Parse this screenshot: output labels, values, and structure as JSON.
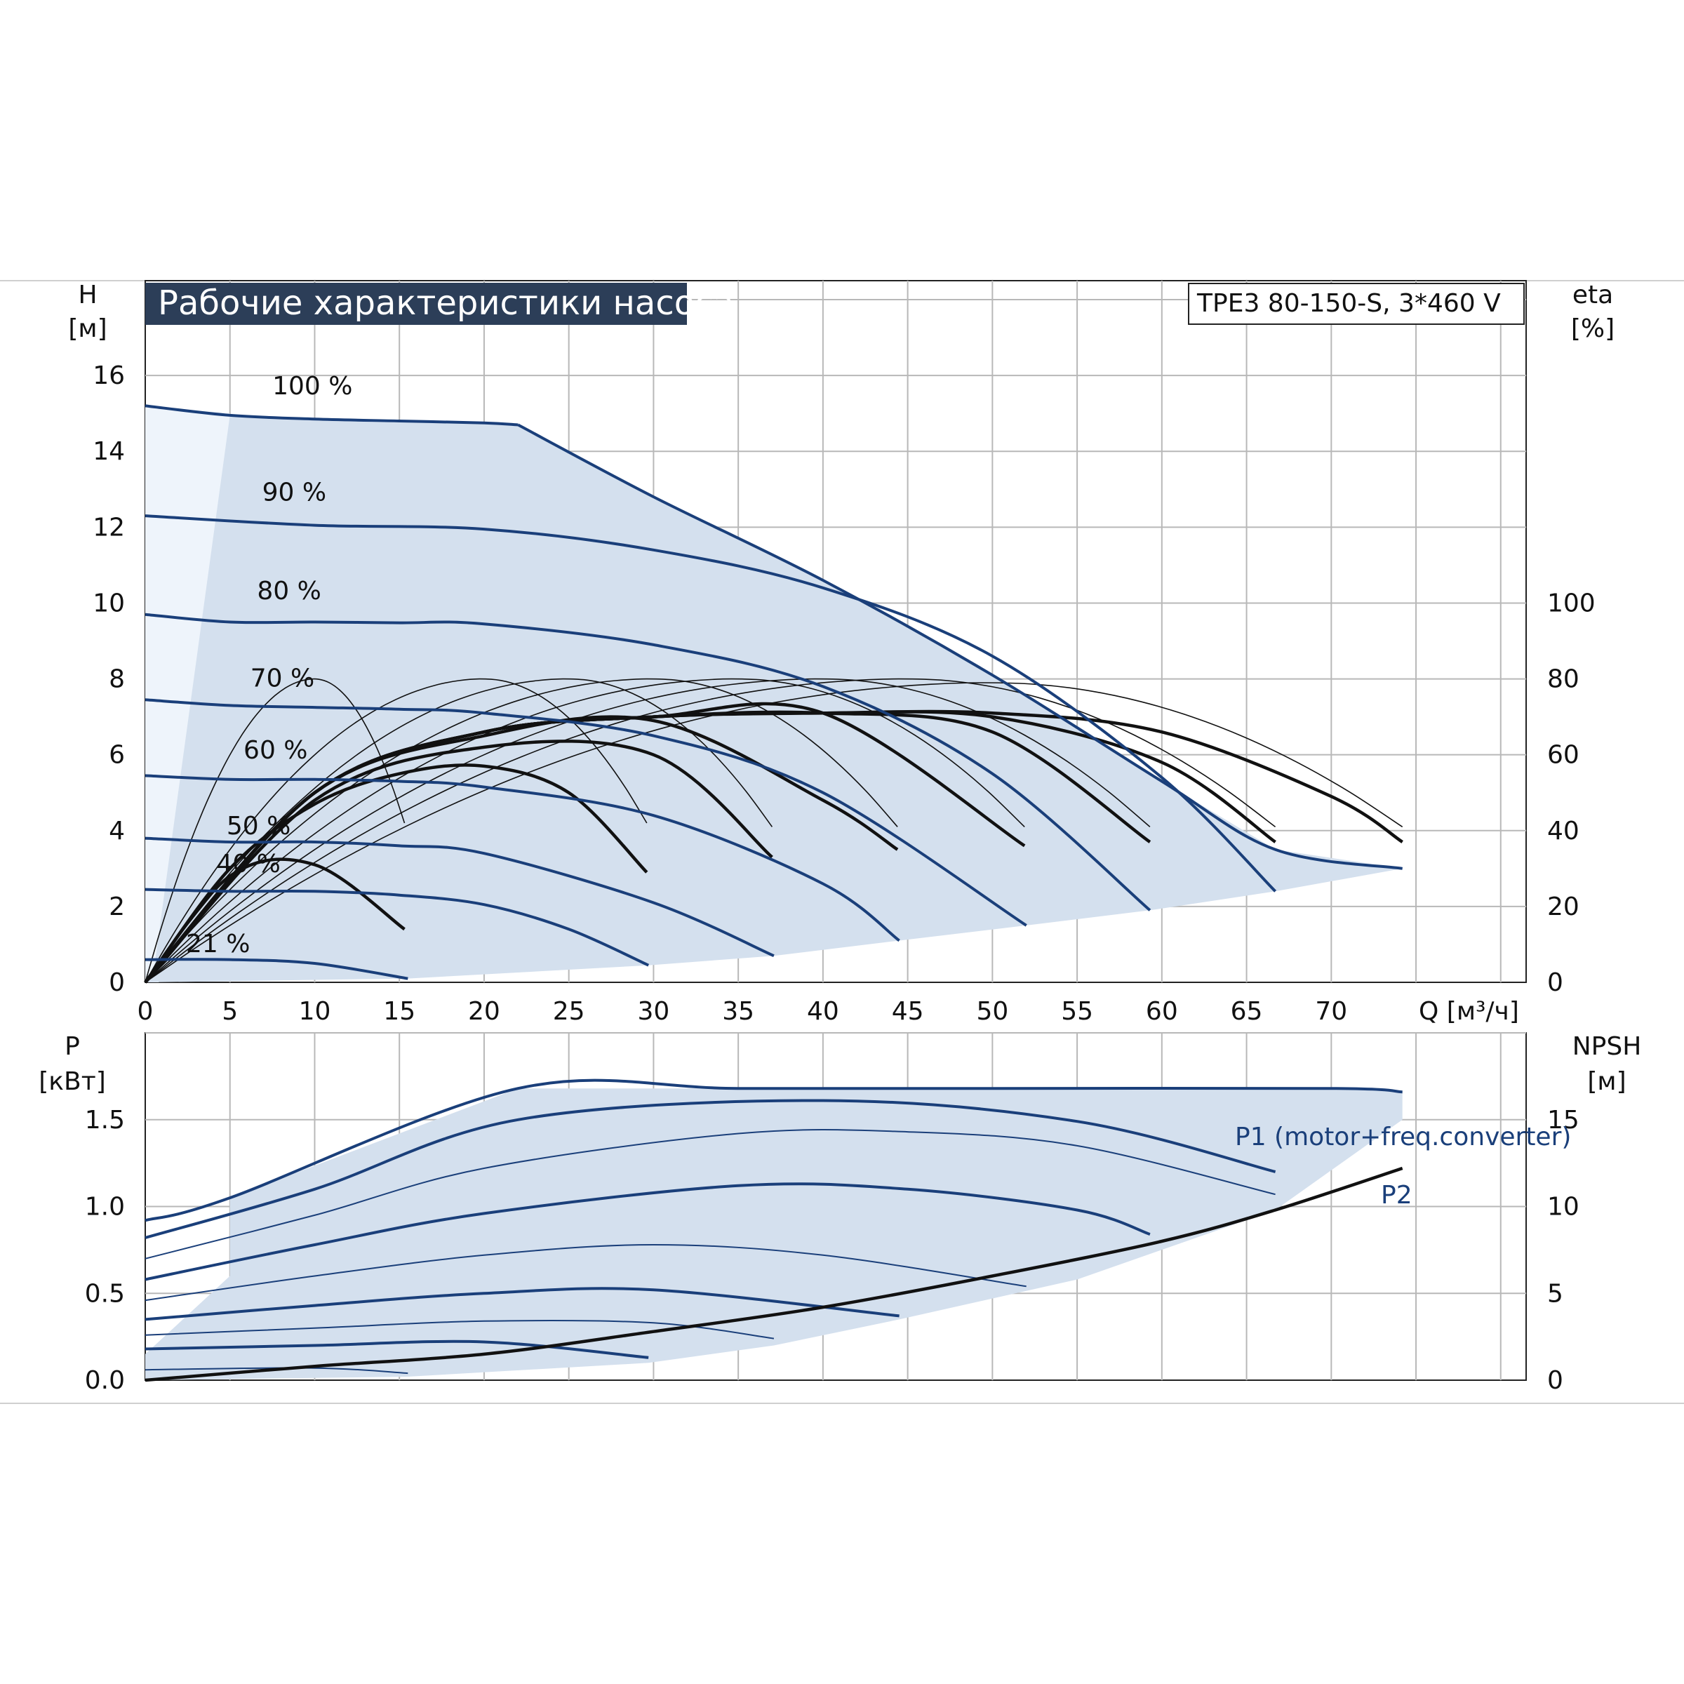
{
  "title": "Рабочие характеристики насоса",
  "model": "TPE3 80-150-S, 3*460 V",
  "colors": {
    "curve": "#1a3f7a",
    "envelope_fill": "#d4e0ee",
    "light_fill": "#eef4fb",
    "grid": "#b8b8b8",
    "title_bg": "#2c3e58",
    "efficiency": "#111111"
  },
  "chart_data": [
    {
      "type": "line",
      "panel": "head",
      "y_axis_label": "H",
      "y_axis_unit": "[м]",
      "y2_axis_label": "eta",
      "y2_axis_unit": "[%]",
      "x_axis_label": "Q [м³/ч]",
      "xlim": [
        0,
        81.5
      ],
      "ylim": [
        0,
        18.5
      ],
      "y2lim": [
        0,
        185
      ],
      "x_ticks": [
        0,
        5,
        10,
        15,
        20,
        25,
        30,
        35,
        40,
        45,
        50,
        55,
        60,
        65,
        70
      ],
      "y_ticks": [
        0,
        2,
        4,
        6,
        8,
        10,
        12,
        14,
        16
      ],
      "y2_ticks": [
        0,
        20,
        40,
        60,
        80,
        100
      ],
      "grid": true,
      "speed_labels": [
        "100 %",
        "90 %",
        "80 %",
        "70 %",
        "60 %",
        "50 %",
        "40 %",
        "21 %"
      ],
      "head_series": [
        {
          "name": "100 %",
          "x": [
            0,
            5,
            10,
            15,
            20,
            22
          ],
          "y": [
            15.2,
            14.95,
            14.85,
            14.8,
            14.75,
            14.7
          ]
        },
        {
          "name": "100 % max",
          "x": [
            22,
            30,
            40,
            50,
            60,
            66.7,
            74.2
          ],
          "y": [
            14.7,
            12.8,
            10.6,
            8.1,
            5.3,
            3.5,
            3.0
          ]
        },
        {
          "name": "90 %",
          "x": [
            0,
            10,
            20,
            30,
            40,
            50,
            60,
            66.7
          ],
          "y": [
            12.3,
            12.05,
            11.95,
            11.4,
            10.4,
            8.6,
            5.4,
            2.4
          ]
        },
        {
          "name": "80 %",
          "x": [
            0,
            5,
            10,
            15,
            20,
            30,
            40,
            50,
            59.3
          ],
          "y": [
            9.7,
            9.5,
            9.5,
            9.48,
            9.45,
            8.9,
            7.8,
            5.5,
            1.9
          ]
        },
        {
          "name": "70 %",
          "x": [
            0,
            5,
            10,
            15,
            20,
            30,
            40,
            52
          ],
          "y": [
            7.45,
            7.3,
            7.25,
            7.2,
            7.1,
            6.5,
            5.0,
            1.5
          ]
        },
        {
          "name": "60 %",
          "x": [
            0,
            5,
            10,
            15,
            20,
            30,
            40,
            44.5
          ],
          "y": [
            5.45,
            5.35,
            5.35,
            5.3,
            5.15,
            4.4,
            2.6,
            1.1
          ]
        },
        {
          "name": "50 %",
          "x": [
            0,
            5,
            10,
            15,
            20,
            30,
            37.1
          ],
          "y": [
            3.8,
            3.7,
            3.7,
            3.6,
            3.4,
            2.1,
            0.7
          ]
        },
        {
          "name": "40 %",
          "x": [
            0,
            5,
            10,
            15,
            20,
            25,
            29.7
          ],
          "y": [
            2.45,
            2.4,
            2.4,
            2.3,
            2.05,
            1.4,
            0.45
          ]
        },
        {
          "name": "21 %",
          "x": [
            0,
            5,
            10,
            15.5
          ],
          "y": [
            0.6,
            0.6,
            0.5,
            0.1
          ]
        }
      ],
      "envelope_lower": {
        "x": [
          0,
          15.5,
          29.7,
          37.1,
          44.5,
          52,
          59.3,
          66.7,
          74.2
        ],
        "y": [
          0,
          0.1,
          0.45,
          0.7,
          1.1,
          1.5,
          1.9,
          2.4,
          3.0
        ]
      },
      "efficiency_peaks": [
        {
          "q_end": 15.3,
          "peak_x": 10,
          "peak_y": 80,
          "end_y": 42
        },
        {
          "q_end": 29.6,
          "peak_x": 20,
          "peak_y": 80,
          "end_y": 42
        },
        {
          "q_end": 37.0,
          "peak_x": 25,
          "peak_y": 80,
          "end_y": 41
        },
        {
          "q_end": 44.4,
          "peak_x": 30,
          "peak_y": 80,
          "end_y": 41
        },
        {
          "q_end": 51.9,
          "peak_x": 35,
          "peak_y": 80,
          "end_y": 41
        },
        {
          "q_end": 59.3,
          "peak_x": 40,
          "peak_y": 80,
          "end_y": 41
        },
        {
          "q_end": 66.7,
          "peak_x": 45,
          "peak_y": 80,
          "end_y": 41
        },
        {
          "q_end": 74.2,
          "peak_x": 50,
          "peak_y": 79,
          "end_y": 41
        }
      ],
      "efficiency_series": [
        {
          "x": [
            0,
            5,
            10,
            15.3
          ],
          "y": [
            0,
            28,
            31,
            14
          ]
        },
        {
          "x": [
            0,
            5,
            10,
            15,
            20,
            25,
            29.6
          ],
          "y": [
            0,
            30,
            47,
            55,
            57,
            50,
            29
          ]
        },
        {
          "x": [
            0,
            10,
            20,
            30,
            37.0
          ],
          "y": [
            0,
            48,
            62,
            60,
            33
          ]
        },
        {
          "x": [
            0,
            10,
            20,
            30,
            40,
            44.4
          ],
          "y": [
            0,
            50,
            65,
            69,
            48,
            35
          ]
        },
        {
          "x": [
            0,
            10,
            20,
            30,
            40,
            51.9
          ],
          "y": [
            0,
            50,
            66,
            70,
            71,
            36
          ]
        },
        {
          "x": [
            0,
            10,
            20,
            30,
            40,
            50,
            59.3
          ],
          "y": [
            0,
            50,
            66,
            70,
            71,
            66,
            37
          ]
        },
        {
          "x": [
            0,
            10,
            20,
            30,
            40,
            50,
            60,
            66.7
          ],
          "y": [
            0,
            50,
            66,
            70,
            71,
            70,
            58,
            37
          ]
        },
        {
          "x": [
            0,
            10,
            20,
            30,
            40,
            50,
            60,
            70,
            74.2
          ],
          "y": [
            0,
            50,
            66,
            70,
            71,
            71,
            66,
            49,
            37
          ]
        }
      ]
    },
    {
      "type": "line",
      "panel": "power",
      "y_axis_label": "P",
      "y_axis_unit": "[кВт]",
      "y2_axis_label": "NPSH",
      "y2_axis_unit": "[м]",
      "xlim": [
        0,
        81.5
      ],
      "ylim": [
        0,
        2.0
      ],
      "y2lim": [
        0,
        20
      ],
      "y_ticks": [
        "0.0",
        "0.5",
        "1.0",
        "1.5"
      ],
      "y_tick_values": [
        0,
        0.5,
        1.0,
        1.5
      ],
      "y2_ticks": [
        0,
        5,
        10,
        15
      ],
      "grid": true,
      "series_labels": [
        "P1 (motor+freq.converter)",
        "P2"
      ],
      "p1_max": {
        "x": [
          0,
          5,
          22,
          35,
          50,
          70,
          74.2
        ],
        "y": [
          0.92,
          1.05,
          1.68,
          1.68,
          1.68,
          1.68,
          1.66
        ]
      },
      "p_curves": [
        {
          "x": [
            0,
            10,
            22,
            40,
            55,
            66.7
          ],
          "y": [
            0.82,
            1.1,
            1.5,
            1.61,
            1.49,
            1.2
          ]
        },
        {
          "x": [
            0,
            10,
            20,
            35,
            45,
            55,
            66.7
          ],
          "y": [
            0.7,
            0.95,
            1.22,
            1.42,
            1.43,
            1.35,
            1.07
          ]
        },
        {
          "x": [
            0,
            10,
            20,
            35,
            45,
            55,
            59.3
          ],
          "y": [
            0.58,
            0.78,
            0.96,
            1.12,
            1.1,
            0.98,
            0.84
          ]
        },
        {
          "x": [
            0,
            10,
            20,
            30,
            40,
            52
          ],
          "y": [
            0.46,
            0.6,
            0.72,
            0.78,
            0.72,
            0.54
          ]
        },
        {
          "x": [
            0,
            10,
            20,
            30,
            44.5
          ],
          "y": [
            0.35,
            0.43,
            0.5,
            0.52,
            0.37
          ]
        },
        {
          "x": [
            0,
            10,
            20,
            30,
            37.1
          ],
          "y": [
            0.26,
            0.3,
            0.34,
            0.33,
            0.24
          ]
        },
        {
          "x": [
            0,
            10,
            20,
            29.7
          ],
          "y": [
            0.18,
            0.2,
            0.22,
            0.13
          ]
        },
        {
          "x": [
            0,
            10,
            15.5
          ],
          "y": [
            0.06,
            0.07,
            0.04
          ]
        }
      ],
      "p2_max": {
        "x": [
          0,
          10,
          20,
          30,
          40,
          50,
          60,
          66.7,
          74.2
        ],
        "y": [
          0,
          0.08,
          0.15,
          0.28,
          0.42,
          0.6,
          0.8,
          0.98,
          1.22
        ]
      }
    }
  ]
}
